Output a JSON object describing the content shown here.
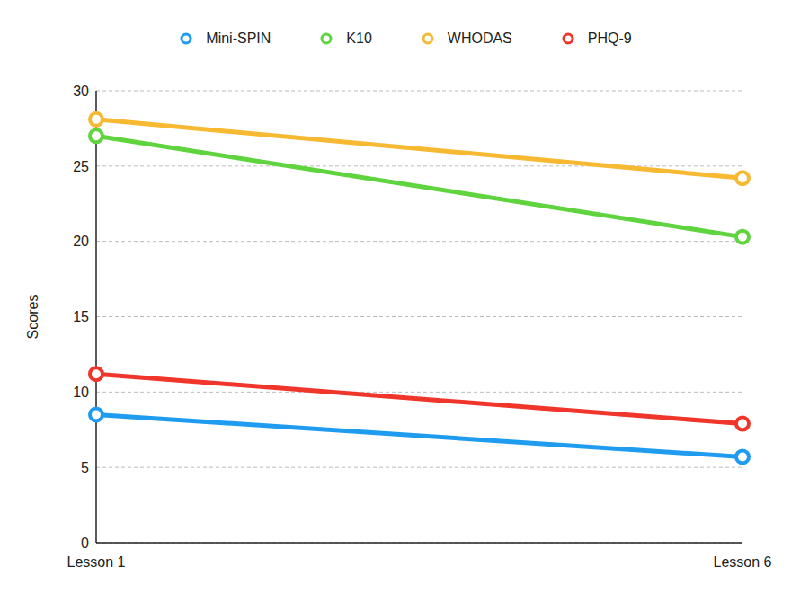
{
  "chart_data": {
    "type": "line",
    "y_label": "Scores",
    "categories": [
      "Lesson 1",
      "Lesson 6"
    ],
    "series": [
      {
        "name": "Mini-SPIN",
        "color": "#1f9cf0",
        "values": [
          8.5,
          5.7
        ],
        "marker": "circle"
      },
      {
        "name": "K10",
        "color": "#5fd43f",
        "values": [
          27,
          20.3
        ],
        "marker": "circle"
      },
      {
        "name": "WHODAS",
        "color": "#f6b931",
        "values": [
          28.1,
          24.2
        ],
        "marker": "circle"
      },
      {
        "name": "PHQ-9",
        "color": "#f0362b",
        "values": [
          11.2,
          7.9
        ],
        "marker": "circle"
      }
    ],
    "ylim": [
      0,
      30
    ],
    "yticks": [
      0,
      5,
      10,
      15,
      20,
      25,
      30
    ],
    "grid": true,
    "legend": "top"
  }
}
